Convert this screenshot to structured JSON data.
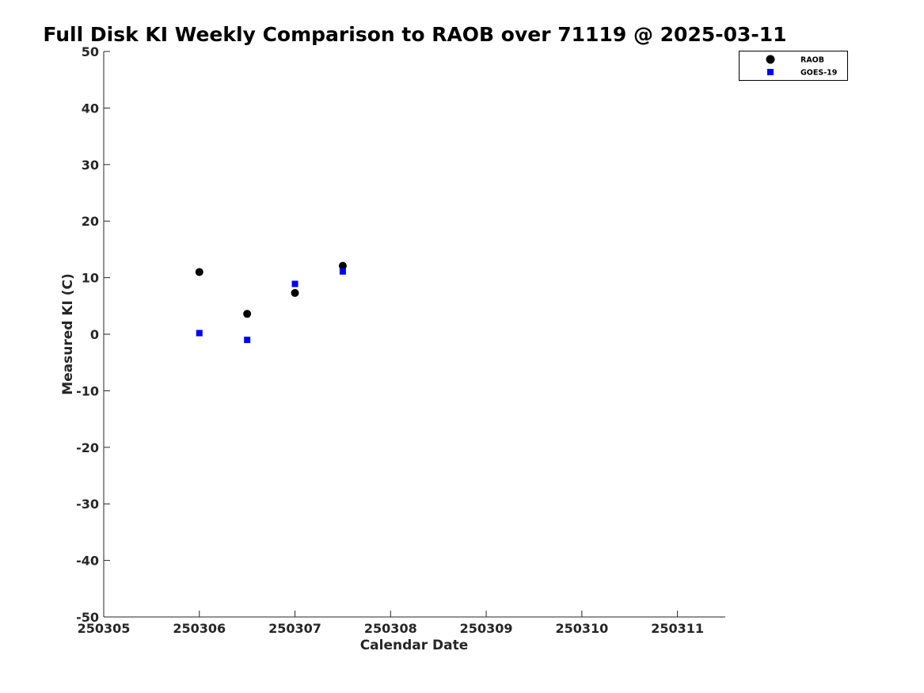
{
  "chart_data": {
    "type": "scatter",
    "title": "Full Disk KI Weekly Comparison to RAOB over 71119 @ 2025-03-11",
    "xlabel": "Calendar Date",
    "ylabel": "Measured KI (C)",
    "xlim": [
      250305,
      250311.5
    ],
    "ylim": [
      -50,
      50
    ],
    "xticks": [
      250305,
      250306,
      250307,
      250308,
      250309,
      250310,
      250311
    ],
    "xtick_labels": [
      "250305",
      "250306",
      "250307",
      "250308",
      "250309",
      "250310",
      "250311"
    ],
    "yticks": [
      -50,
      -40,
      -30,
      -20,
      -10,
      0,
      10,
      20,
      30,
      40,
      50
    ],
    "ytick_labels": [
      "-50",
      "-40",
      "-30",
      "-20",
      "-10",
      "0",
      "10",
      "20",
      "30",
      "40",
      "50"
    ],
    "grid": false,
    "legend_position": "top-right",
    "series": [
      {
        "name": "RAOB",
        "marker": "circle",
        "color": "#000000",
        "x": [
          250306,
          250306.5,
          250307,
          250307.5
        ],
        "y": [
          11.0,
          3.6,
          7.3,
          12.1
        ]
      },
      {
        "name": "GOES-19",
        "marker": "square",
        "color": "#0000ff",
        "x": [
          250306,
          250306.5,
          250307,
          250307.5
        ],
        "y": [
          0.2,
          -1.0,
          8.9,
          11.1
        ]
      }
    ]
  }
}
